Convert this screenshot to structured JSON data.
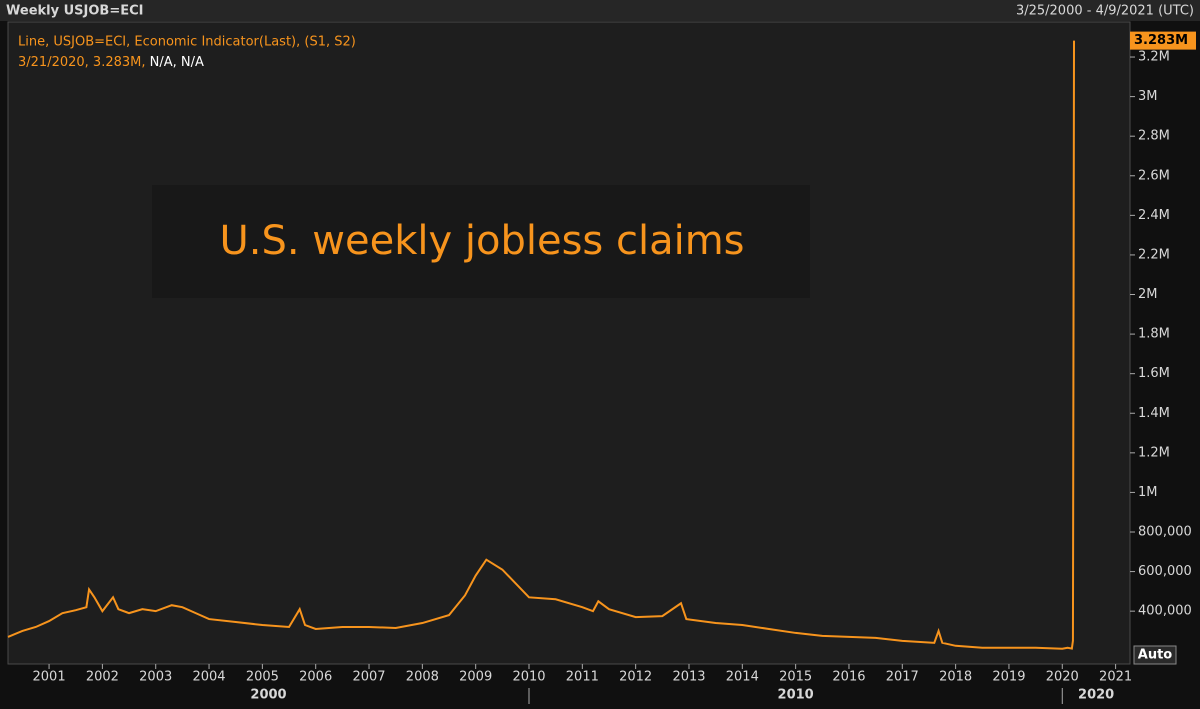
{
  "chart_data": {
    "type": "line",
    "title": "Weekly USJOB=ECI",
    "date_range": "3/25/2000 - 4/9/2021 (UTC)",
    "cursor_label": "3/21/2020, 3.283M,",
    "cursor_extra": "N/A, N/A",
    "annotation": "U.S. weekly jobless claims",
    "scale_button": "Auto",
    "series": [
      {
        "name": "Line, USJOB=ECI, Economic Indicator(Last), (S1, S2)",
        "color": "#f7941d",
        "x": [
          2000.23,
          2000.5,
          2000.75,
          2001.0,
          2001.25,
          2001.5,
          2001.7,
          2001.75,
          2001.85,
          2002.0,
          2002.2,
          2002.3,
          2002.5,
          2002.75,
          2003.0,
          2003.3,
          2003.5,
          2003.75,
          2004.0,
          2004.5,
          2005.0,
          2005.5,
          2005.7,
          2005.8,
          2006.0,
          2006.5,
          2007.0,
          2007.5,
          2008.0,
          2008.5,
          2008.8,
          2009.0,
          2009.2,
          2009.5,
          2009.75,
          2010.0,
          2010.5,
          2011.0,
          2011.2,
          2011.3,
          2011.5,
          2012.0,
          2012.5,
          2012.85,
          2012.95,
          2013.5,
          2014.0,
          2014.5,
          2015.0,
          2015.5,
          2016.0,
          2016.5,
          2017.0,
          2017.6,
          2017.68,
          2017.75,
          2018.0,
          2018.5,
          2019.0,
          2019.5,
          2020.0,
          2020.1,
          2020.18,
          2020.2,
          2020.22
        ],
        "values": [
          270000,
          300000,
          320000,
          350000,
          390000,
          405000,
          420000,
          510000,
          470000,
          400000,
          470000,
          410000,
          390000,
          410000,
          400000,
          430000,
          420000,
          390000,
          360000,
          345000,
          330000,
          320000,
          410000,
          330000,
          310000,
          320000,
          320000,
          315000,
          340000,
          380000,
          480000,
          580000,
          660000,
          610000,
          540000,
          470000,
          460000,
          420000,
          400000,
          450000,
          410000,
          370000,
          375000,
          440000,
          360000,
          340000,
          330000,
          310000,
          290000,
          275000,
          270000,
          265000,
          250000,
          240000,
          300000,
          240000,
          225000,
          215000,
          215000,
          215000,
          210000,
          215000,
          211000,
          251000,
          3283000
        ]
      }
    ],
    "current_value": {
      "value": 3283000,
      "label": "3.283M"
    },
    "xlim": [
      2000.23,
      2021.27
    ],
    "xticks": [
      2001,
      2002,
      2003,
      2004,
      2005,
      2006,
      2007,
      2008,
      2009,
      2010,
      2011,
      2012,
      2013,
      2014,
      2015,
      2016,
      2017,
      2018,
      2019,
      2020,
      2021
    ],
    "period_ticks": [
      2000,
      2010,
      2020
    ],
    "ylim": [
      133000,
      3377000
    ],
    "yticks": [
      {
        "value": 400000,
        "label": "400,000"
      },
      {
        "value": 600000,
        "label": "600,000"
      },
      {
        "value": 800000,
        "label": "800,000"
      },
      {
        "value": 1000000,
        "label": "1M"
      },
      {
        "value": 1200000,
        "label": "1.2M"
      },
      {
        "value": 1400000,
        "label": "1.4M"
      },
      {
        "value": 1600000,
        "label": "1.6M"
      },
      {
        "value": 1800000,
        "label": "1.8M"
      },
      {
        "value": 2000000,
        "label": "2M"
      },
      {
        "value": 2200000,
        "label": "2.2M"
      },
      {
        "value": 2400000,
        "label": "2.4M"
      },
      {
        "value": 2600000,
        "label": "2.6M"
      },
      {
        "value": 2800000,
        "label": "2.8M"
      },
      {
        "value": 3000000,
        "label": "3M"
      },
      {
        "value": 3200000,
        "label": "3.2M"
      }
    ],
    "grid": false
  }
}
